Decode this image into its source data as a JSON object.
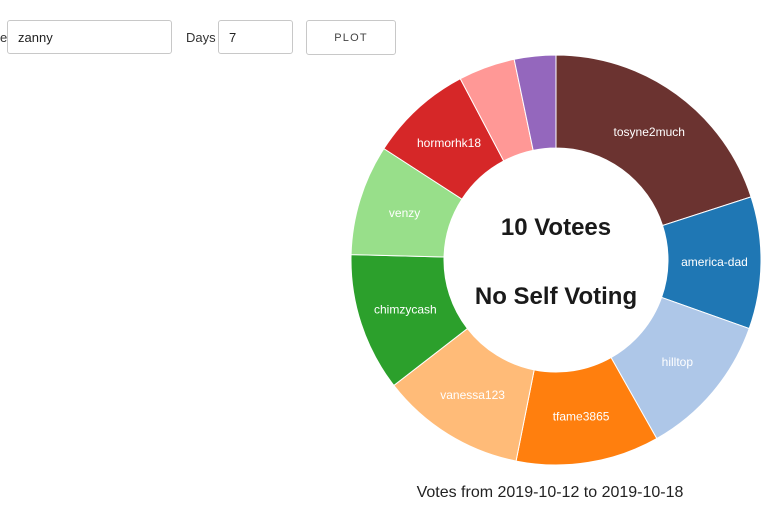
{
  "form": {
    "user_label": "e",
    "user_value": "zanny",
    "days_label": "Days",
    "days_value": "7",
    "plot_label": "PLOT"
  },
  "chart_data": {
    "type": "pie",
    "style": "donut",
    "center_text": [
      "10 Votees",
      "No Self Voting"
    ],
    "caption": "Votes from 2019-10-12 to 2019-10-18",
    "slices": [
      {
        "label": "tosyne2much",
        "value": 20.2,
        "color": "#6b3330"
      },
      {
        "label": "america-dad",
        "value": 10.5,
        "color": "#1f77b4"
      },
      {
        "label": "hilltop",
        "value": 11.5,
        "color": "#aec7e8"
      },
      {
        "label": "tfame3865",
        "value": 11.4,
        "color": "#ff7f0e"
      },
      {
        "label": "vanessa123",
        "value": 11.5,
        "color": "#ffbb78"
      },
      {
        "label": "chimzycash",
        "value": 11.0,
        "color": "#2ca02c"
      },
      {
        "label": "venzy",
        "value": 8.8,
        "color": "#98df8a"
      },
      {
        "label": "hormorhk18",
        "value": 8.2,
        "color": "#d62728"
      },
      {
        "label": "",
        "value": 4.5,
        "color": "#ff9896"
      },
      {
        "label": "",
        "value": 3.3,
        "color": "#9467bd"
      }
    ]
  }
}
